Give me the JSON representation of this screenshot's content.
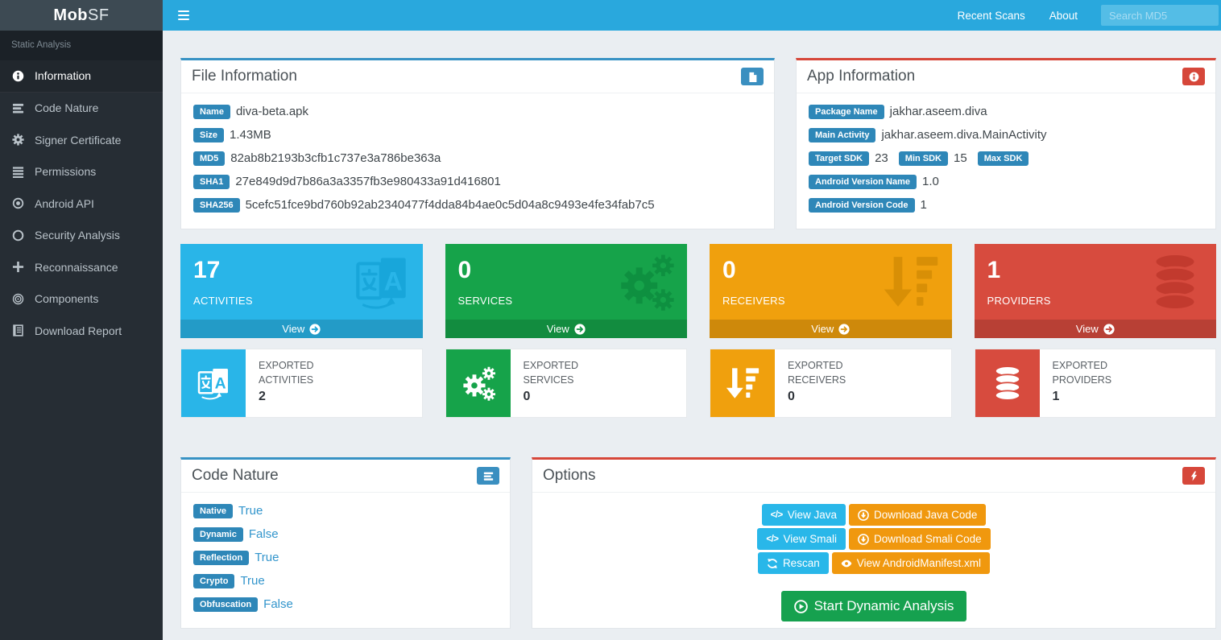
{
  "navbar": {
    "logo": {
      "bold": "Mob",
      "light": "SF"
    },
    "links": [
      "Recent Scans",
      "About"
    ],
    "search": {
      "placeholder": "Search MD5",
      "value": ""
    }
  },
  "sidebar": {
    "section_label": "Static Analysis",
    "items": [
      {
        "label": "Information",
        "icon": "info",
        "active": true
      },
      {
        "label": "Code Nature",
        "icon": "bars",
        "active": false
      },
      {
        "label": "Signer Certificate",
        "icon": "gear",
        "active": false
      },
      {
        "label": "Permissions",
        "icon": "justify",
        "active": false
      },
      {
        "label": "Android API",
        "icon": "dotcircle",
        "active": false
      },
      {
        "label": "Security Analysis",
        "icon": "circle",
        "active": false
      },
      {
        "label": "Reconnaissance",
        "icon": "plus",
        "active": false
      },
      {
        "label": "Components",
        "icon": "bullseye",
        "active": false
      },
      {
        "label": "Download Report",
        "icon": "journal",
        "active": false
      }
    ]
  },
  "file_info": {
    "title": "File Information",
    "accent": "#3892c4",
    "rows": [
      {
        "label": "Name",
        "value": "diva-beta.apk"
      },
      {
        "label": "Size",
        "value": "1.43MB"
      },
      {
        "label": "MD5",
        "value": "82ab8b2193b3cfb1c737e3a786be363a"
      },
      {
        "label": "SHA1",
        "value": "27e849d9d7b86a3a3357fb3e980433a91d416801"
      },
      {
        "label": "SHA256",
        "value": "5cefc51fce9bd760b92ab2340477f4dda84b4ae0c5d04a8c9493e4fe34fab7c5"
      }
    ]
  },
  "app_info": {
    "title": "App Information",
    "accent": "#d6473a",
    "rows_top": [
      {
        "label": "Package Name",
        "value": "jakhar.aseem.diva"
      },
      {
        "label": "Main Activity",
        "value": "jakhar.aseem.diva.MainActivity"
      }
    ],
    "sdk_pairs": [
      {
        "label": "Target SDK",
        "value": "23"
      },
      {
        "label": "Min SDK",
        "value": "15"
      },
      {
        "label": "Max SDK",
        "value": ""
      }
    ],
    "rows_bottom": [
      {
        "label": "Android Version Name",
        "value": "1.0"
      },
      {
        "label": "Android Version Code",
        "value": "1"
      }
    ]
  },
  "stats": [
    {
      "count": "17",
      "label": "ACTIVITIES",
      "view_label": "View",
      "icon": "language",
      "color": "#29b5e8",
      "icon_color": "#18a6da",
      "footer_color": "#14a0d5"
    },
    {
      "count": "0",
      "label": "SERVICES",
      "view_label": "View",
      "icon": "cogs",
      "color": "#16a34a",
      "icon_color": "#0e9040",
      "footer_color": "#0e9443"
    },
    {
      "count": "0",
      "label": "RECEIVERS",
      "view_label": "View",
      "icon": "sort",
      "color": "#f0a00d",
      "icon_color": "#d88f06",
      "footer_color": "#da920b"
    },
    {
      "count": "1",
      "label": "PROVIDERS",
      "view_label": "View",
      "icon": "database",
      "color": "#d74b3e",
      "icon_color": "#c23a2e",
      "footer_color": "#c33d31"
    }
  ],
  "exported": [
    {
      "label": "EXPORTED ACTIVITIES",
      "count": "2",
      "icon": "language",
      "color": "#29b5e8"
    },
    {
      "label": "EXPORTED SERVICES",
      "count": "0",
      "icon": "cogs",
      "color": "#16a34a"
    },
    {
      "label": "EXPORTED RECEIVERS",
      "count": "0",
      "icon": "sort",
      "color": "#f0a00d"
    },
    {
      "label": "EXPORTED PROVIDERS",
      "count": "1",
      "icon": "database",
      "color": "#d74b3e"
    }
  ],
  "code_nature": {
    "title": "Code Nature",
    "accent": "#3892c4",
    "rows": [
      {
        "label": "Native",
        "value": "True"
      },
      {
        "label": "Dynamic",
        "value": "False"
      },
      {
        "label": "Reflection",
        "value": "True"
      },
      {
        "label": "Crypto",
        "value": "True"
      },
      {
        "label": "Obfuscation",
        "value": "False"
      }
    ]
  },
  "options": {
    "title": "Options",
    "accent": "#d6473a",
    "button_rows": [
      [
        {
          "label": "View Java",
          "icon": "code",
          "style": "cyan"
        },
        {
          "label": "Download Java Code",
          "icon": "download",
          "style": "orange"
        }
      ],
      [
        {
          "label": "View Smali",
          "icon": "code",
          "style": "cyan"
        },
        {
          "label": "Download Smali Code",
          "icon": "download",
          "style": "orange"
        }
      ],
      [
        {
          "label": "Rescan",
          "icon": "refresh",
          "style": "cyan"
        },
        {
          "label": "View AndroidManifest.xml",
          "icon": "eye",
          "style": "orange"
        }
      ]
    ],
    "start_button": {
      "label": "Start Dynamic Analysis",
      "color": "#16a14f"
    }
  },
  "colors": {
    "navbar": "#29a8dd",
    "logo_bg": "#3d4a53",
    "sidebar_bg": "#262d34",
    "page_bg": "#eaeef2",
    "badge": "#2e87b8",
    "value_link": "#3295cc"
  }
}
